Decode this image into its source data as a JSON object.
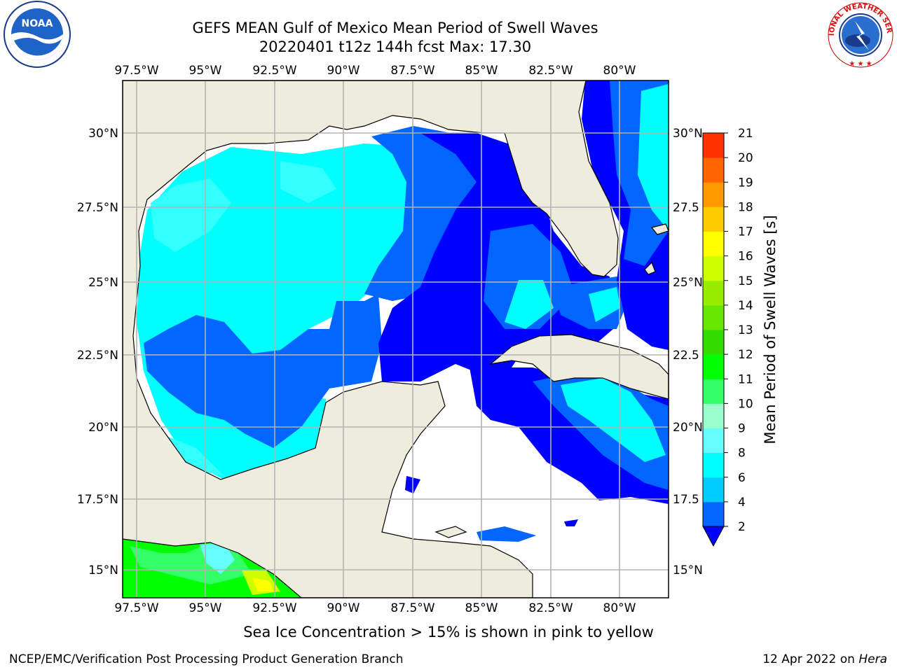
{
  "header": {
    "title_line1": "GEFS MEAN Gulf of Mexico Mean Period of Swell Waves",
    "title_line2": "20220401 t12z 144h fcst   Max: 17.30"
  },
  "logos": {
    "left": {
      "name": "noaa-logo",
      "text": "NOAA"
    },
    "right": {
      "name": "nws-logo",
      "text": "NATIONAL WEATHER SERVICE"
    }
  },
  "map": {
    "lon_ticks": [
      "97.5°W",
      "95°W",
      "92.5°W",
      "90°W",
      "87.5°W",
      "85°W",
      "82.5°W",
      "80°W"
    ],
    "lat_ticks_left": [
      "30°N",
      "27.5°N",
      "25°N",
      "22.5°N",
      "20°N",
      "17.5°N",
      "15°N"
    ],
    "lat_ticks_right": [
      "30°N",
      "27.5",
      "25°N",
      "22.5",
      "20°N",
      "17.5",
      "15°N"
    ],
    "extent": {
      "lon_min": -98.0,
      "lon_max": -78.3,
      "lat_min": 14.0,
      "lat_max": 31.8
    },
    "land_color": "#eeecdc",
    "grid_color": "#b3b3b3",
    "no_data_color": "#ffffff"
  },
  "colorbar": {
    "label": "Mean Period of Swell Waves [s]",
    "levels": [
      "2",
      "4",
      "6",
      "8",
      "9",
      "10",
      "11",
      "12",
      "13",
      "14",
      "15",
      "16",
      "17",
      "18",
      "19",
      "20",
      "21"
    ],
    "colors": [
      "#0066ff",
      "#00ccff",
      "#00ffff",
      "#66ffff",
      "#99ffcc",
      "#33ff66",
      "#00ff00",
      "#33dd00",
      "#66e600",
      "#99ee00",
      "#ccff00",
      "#ffff00",
      "#ffcc00",
      "#ff9900",
      "#ff6600",
      "#ff3300",
      "#ff0000"
    ],
    "under_color": "#0000ff"
  },
  "footer": {
    "caption": "Sea Ice Concentration > 15% is shown in pink to yellow",
    "credit": "NCEP/EMC/Verification Post Processing Product Generation Branch",
    "date": "12 Apr 2022 on ",
    "host": "Hera"
  }
}
